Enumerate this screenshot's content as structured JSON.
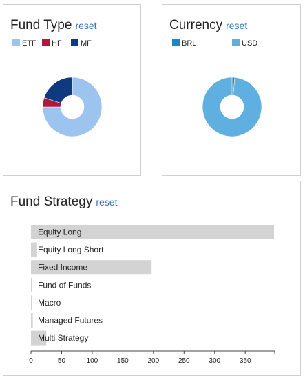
{
  "fund_type": {
    "title": "Fund Type",
    "reset_label": "reset",
    "legend": [
      {
        "label": "ETF",
        "color": "#9dc3ef"
      },
      {
        "label": "HF",
        "color": "#b0173a"
      },
      {
        "label": "MF",
        "color": "#103a80"
      }
    ],
    "chart_data": {
      "type": "pie",
      "labels": [
        "ETF",
        "HF",
        "MF"
      ],
      "values": [
        75,
        5,
        20
      ],
      "colors": [
        "#9dc3ef",
        "#b0173a",
        "#103a80"
      ]
    }
  },
  "currency": {
    "title": "Currency",
    "reset_label": "reset",
    "legend": [
      {
        "label": "BRL",
        "color": "#1f83c6"
      },
      {
        "label": "USD",
        "color": "#5fb0e0"
      }
    ],
    "chart_data": {
      "type": "pie",
      "labels": [
        "BRL",
        "USD"
      ],
      "values": [
        1.5,
        98.5
      ],
      "colors": [
        "#1f83c6",
        "#5fb0e0"
      ]
    }
  },
  "fund_strategy": {
    "title": "Fund Strategy",
    "reset_label": "reset",
    "chart_data": {
      "type": "bar",
      "orientation": "horizontal",
      "categories": [
        "Equity Long",
        "Equity Long Short",
        "Fixed Income",
        "Fund of Funds",
        "Macro",
        "Managed Futures",
        "Multi Strategy"
      ],
      "values": [
        397,
        10,
        197,
        1,
        1,
        3,
        25
      ],
      "bar_color": "#d3d3d3",
      "xticks": [
        0,
        50,
        100,
        150,
        200,
        250,
        300,
        350
      ],
      "xlim": [
        0,
        397
      ]
    }
  }
}
